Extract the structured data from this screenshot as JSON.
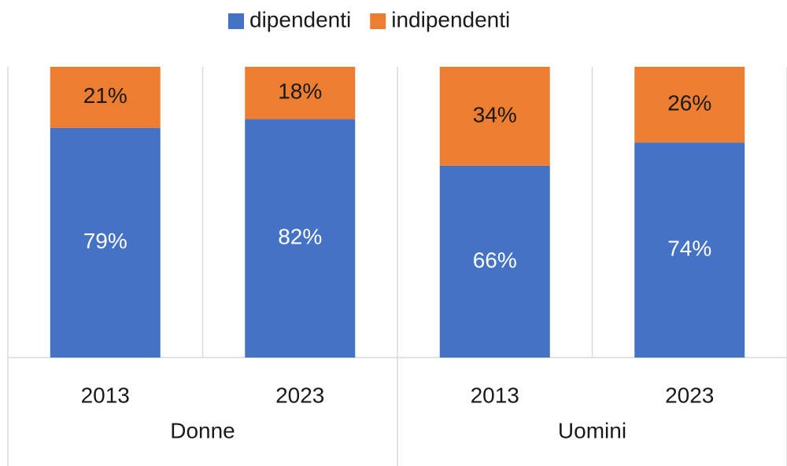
{
  "chart_data": {
    "type": "stacked_bar",
    "groups": [
      {
        "label": "Donne",
        "categories": [
          "2013",
          "2023"
        ]
      },
      {
        "label": "Uomini",
        "categories": [
          "2013",
          "2023"
        ]
      }
    ],
    "series": [
      {
        "name": "dipendenti",
        "color": "#4472c4",
        "label_color": "#ffffff",
        "values": [
          79,
          82,
          66,
          74
        ],
        "value_labels": [
          "79%",
          "82%",
          "66%",
          "74%"
        ]
      },
      {
        "name": "indipendenti",
        "color": "#ed7d31",
        "label_color": "#1a1a1a",
        "values": [
          21,
          18,
          34,
          26
        ],
        "value_labels": [
          "21%",
          "18%",
          "34%",
          "26%"
        ]
      }
    ],
    "ylim": [
      0,
      100
    ],
    "legend": "top"
  }
}
